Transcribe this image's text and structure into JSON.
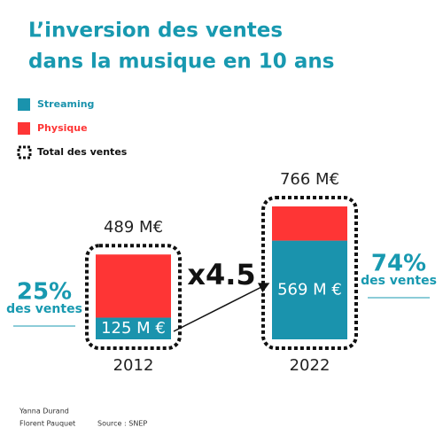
{
  "chart_data": {
    "type": "bar",
    "stacked": true,
    "title": [
      "L’inversion des ventes",
      "dans la musique en 10 ans"
    ],
    "categories": [
      "2012",
      "2022"
    ],
    "series": [
      {
        "name": "Streaming",
        "color": "#1a93ad",
        "values": [
          125,
          569
        ],
        "value_labels": [
          "125 M €",
          "569 M €"
        ]
      },
      {
        "name": "Physique",
        "color": "#fe3535",
        "values": [
          364,
          197
        ]
      }
    ],
    "totals": {
      "name": "Total des ventes",
      "values": [
        489,
        766
      ],
      "value_labels": [
        "489 M€",
        "766 M€"
      ]
    },
    "shares": [
      {
        "value": 25,
        "label": "25%",
        "text": "des ventes"
      },
      {
        "value": 74,
        "label": "74%",
        "text": "des ventes"
      }
    ],
    "growth": {
      "value": 4.5,
      "label": "x4.5"
    },
    "credits": [
      "Yanna Durand",
      "Florent Pauquet",
      "Source : SNEP"
    ]
  }
}
